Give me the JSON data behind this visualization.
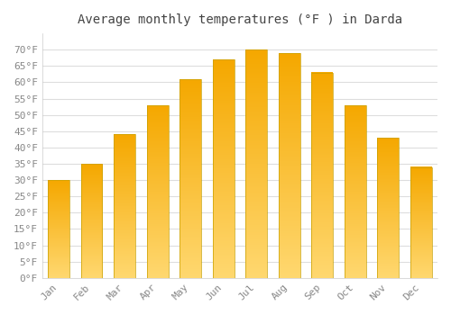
{
  "title": "Average monthly temperatures (°F ) in Darda",
  "months": [
    "Jan",
    "Feb",
    "Mar",
    "Apr",
    "May",
    "Jun",
    "Jul",
    "Aug",
    "Sep",
    "Oct",
    "Nov",
    "Dec"
  ],
  "values": [
    30,
    35,
    44,
    53,
    61,
    67,
    70,
    69,
    63,
    53,
    43,
    34
  ],
  "bar_color_top": "#F5A800",
  "bar_color_bottom": "#FFD870",
  "ylim": [
    0,
    75
  ],
  "yticks": [
    0,
    5,
    10,
    15,
    20,
    25,
    30,
    35,
    40,
    45,
    50,
    55,
    60,
    65,
    70
  ],
  "ylabel_suffix": "°F",
  "background_color": "#FFFFFF",
  "grid_color": "#DDDDDD",
  "bar_edge_color": "#C8A000",
  "title_fontsize": 10,
  "tick_fontsize": 8,
  "font_family": "monospace"
}
